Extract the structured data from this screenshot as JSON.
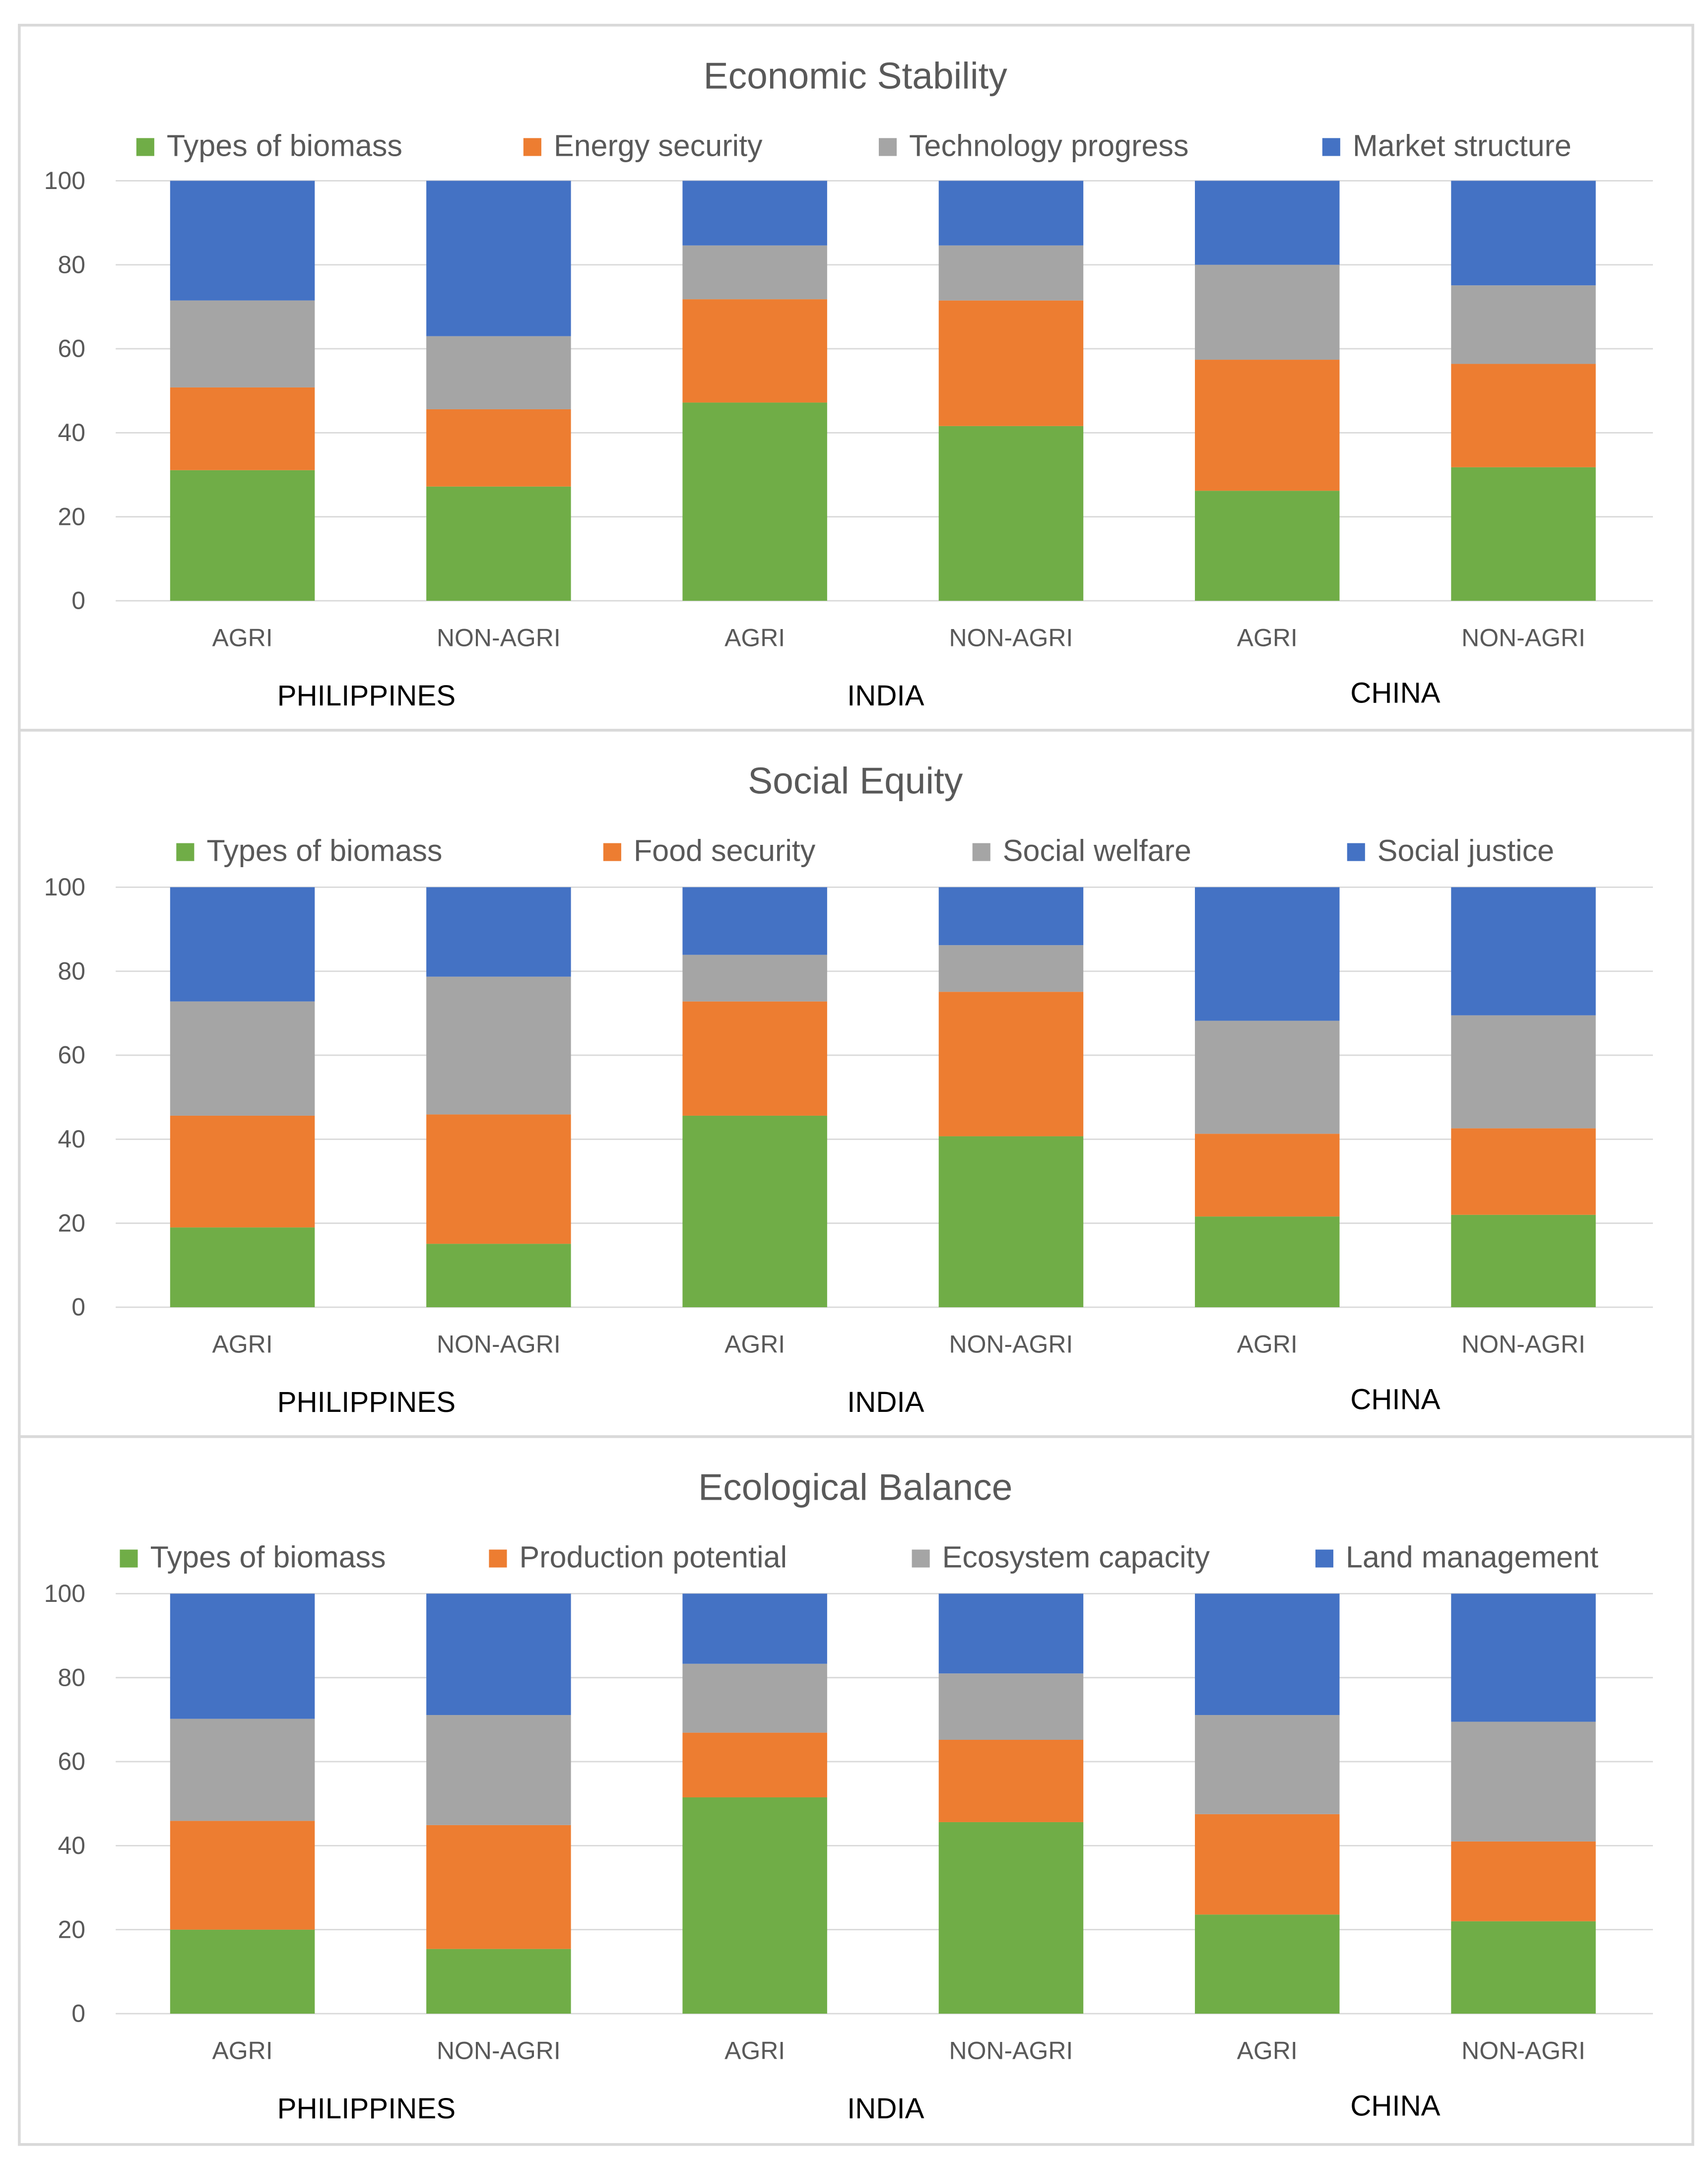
{
  "chart_data": [
    {
      "type": "bar",
      "stacked": true,
      "title": "Economic Stability",
      "categories": [
        "AGRI",
        "NON-AGRI",
        "AGRI",
        "NON-AGRI",
        "AGRI",
        "NON-AGRI"
      ],
      "groups": [
        "PHILIPPINES",
        "INDIA",
        "CHINA"
      ],
      "ylim": [
        0,
        100
      ],
      "yticks": [
        0,
        20,
        40,
        60,
        80,
        100
      ],
      "grid": true,
      "legend_position": "top",
      "series": [
        {
          "name": "Types of biomass",
          "color": "#70AD47",
          "values": [
            31.1,
            27.2,
            47.2,
            41.6,
            26.2,
            31.8
          ]
        },
        {
          "name": "Energy security",
          "color": "#ED7D31",
          "values": [
            19.7,
            18.4,
            24.6,
            29.9,
            31.2,
            24.6
          ]
        },
        {
          "name": "Technology progress",
          "color": "#A5A5A5",
          "values": [
            20.7,
            17.4,
            12.8,
            13.1,
            22.6,
            18.7
          ]
        },
        {
          "name": "Market structure",
          "color": "#4472C4",
          "values": [
            28.5,
            37.0,
            15.4,
            15.4,
            20.0,
            24.9
          ]
        }
      ]
    },
    {
      "type": "bar",
      "stacked": true,
      "title": "Social Equity",
      "categories": [
        "AGRI",
        "NON-AGRI",
        "AGRI",
        "NON-AGRI",
        "AGRI",
        "NON-AGRI"
      ],
      "groups": [
        "PHILIPPINES",
        "INDIA",
        "CHINA"
      ],
      "ylim": [
        0,
        100
      ],
      "yticks": [
        0,
        20,
        40,
        60,
        80,
        100
      ],
      "grid": true,
      "legend_position": "top",
      "series": [
        {
          "name": "Types of biomass",
          "color": "#70AD47",
          "values": [
            19.0,
            15.1,
            45.6,
            40.7,
            21.6,
            22.0
          ]
        },
        {
          "name": "Food security",
          "color": "#ED7D31",
          "values": [
            26.6,
            30.8,
            27.2,
            34.4,
            19.7,
            20.6
          ]
        },
        {
          "name": "Social welfare",
          "color": "#A5A5A5",
          "values": [
            27.2,
            32.8,
            11.1,
            11.1,
            26.9,
            26.9
          ]
        },
        {
          "name": "Social justice",
          "color": "#4472C4",
          "values": [
            27.2,
            21.3,
            16.1,
            13.8,
            31.8,
            30.5
          ]
        }
      ]
    },
    {
      "type": "bar",
      "stacked": true,
      "title": "Ecological Balance",
      "categories": [
        "AGRI",
        "NON-AGRI",
        "AGRI",
        "NON-AGRI",
        "AGRI",
        "NON-AGRI"
      ],
      "groups": [
        "PHILIPPINES",
        "INDIA",
        "CHINA"
      ],
      "ylim": [
        0,
        100
      ],
      "yticks": [
        0,
        20,
        40,
        60,
        80,
        100
      ],
      "grid": true,
      "legend_position": "top",
      "series": [
        {
          "name": "Types of biomass",
          "color": "#70AD47",
          "values": [
            20.0,
            15.4,
            51.5,
            45.6,
            23.6,
            22.0
          ]
        },
        {
          "name": "Production potential",
          "color": "#ED7D31",
          "values": [
            25.9,
            29.5,
            15.4,
            19.6,
            23.9,
            19.0
          ]
        },
        {
          "name": "Ecosystem capacity",
          "color": "#A5A5A5",
          "values": [
            24.3,
            26.2,
            16.4,
            15.8,
            23.6,
            28.5
          ]
        },
        {
          "name": "Land management",
          "color": "#4472C4",
          "values": [
            29.8,
            28.9,
            16.7,
            19.0,
            28.9,
            30.5
          ]
        }
      ]
    }
  ]
}
